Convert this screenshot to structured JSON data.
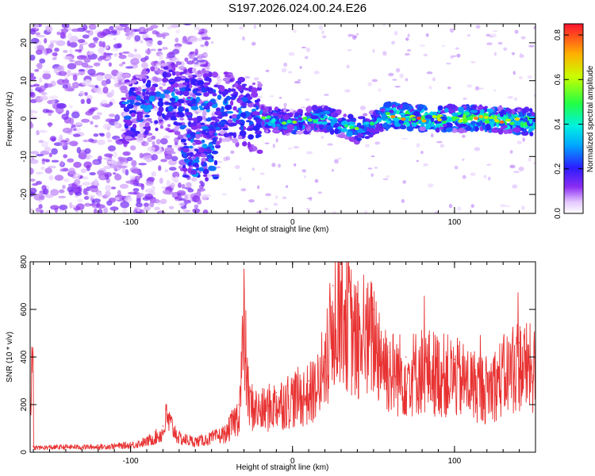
{
  "title": "S197.2026.024.00.24.E26",
  "chart_data": [
    {
      "type": "heatmap",
      "xlabel": "Height of straight line (km)",
      "ylabel": "Frequency (Hz)",
      "xlim": [
        -162,
        150
      ],
      "ylim": [
        -25,
        25
      ],
      "xticks": [
        -100,
        0,
        100
      ],
      "yticks": [
        -20,
        -10,
        0,
        10,
        20
      ],
      "colorbar": {
        "label": "Normalized spectral amplitude",
        "range": [
          0,
          0.85
        ],
        "ticks": [
          0.0,
          0.2,
          0.4,
          0.6,
          0.8
        ]
      },
      "ridge_center_hz": [
        {
          "x": -100,
          "y": 2
        },
        {
          "x": -80,
          "y": 6
        },
        {
          "x": -60,
          "y": 4
        },
        {
          "x": -40,
          "y": 3
        },
        {
          "x": -20,
          "y": 0
        },
        {
          "x": 0,
          "y": -1
        },
        {
          "x": 20,
          "y": 0
        },
        {
          "x": 40,
          "y": -3
        },
        {
          "x": 60,
          "y": 1
        },
        {
          "x": 80,
          "y": 0
        },
        {
          "x": 100,
          "y": 0
        },
        {
          "x": 120,
          "y": 0
        },
        {
          "x": 150,
          "y": -1
        }
      ]
    },
    {
      "type": "line",
      "xlabel": "Height of straight line (km)",
      "ylabel": "SNR (10 * v/v)",
      "xlim": [
        -162,
        150
      ],
      "ylim": [
        0,
        800
      ],
      "xticks": [
        -100,
        0,
        100
      ],
      "yticks": [
        0,
        200,
        400,
        600,
        800
      ],
      "series": [
        {
          "name": "SNR",
          "color": "#e83232",
          "x": [
            -160,
            -140,
            -120,
            -100,
            -90,
            -80,
            -78,
            -70,
            -60,
            -50,
            -40,
            -33,
            -30,
            -27,
            -20,
            -10,
            0,
            10,
            20,
            25,
            30,
            40,
            50,
            60,
            70,
            80,
            100,
            120,
            140,
            150
          ],
          "y": [
            25,
            30,
            30,
            40,
            60,
            110,
            200,
            80,
            60,
            80,
            110,
            200,
            640,
            250,
            210,
            250,
            280,
            300,
            380,
            700,
            800,
            550,
            600,
            420,
            400,
            430,
            390,
            330,
            460,
            420
          ]
        }
      ]
    }
  ]
}
